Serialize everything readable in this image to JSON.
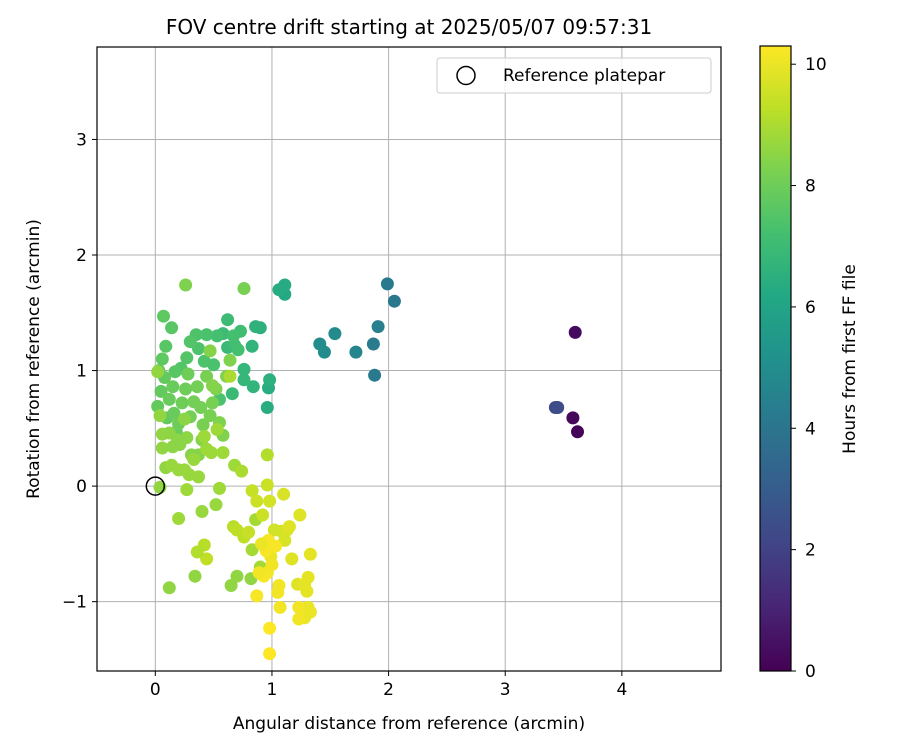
{
  "chart_data": {
    "type": "scatter",
    "title": "FOV centre drift starting at 2025/05/07 09:57:31",
    "xlabel": "Angular distance from reference (arcmin)",
    "ylabel": "Rotation from reference (arcmin)",
    "xlim": [
      -0.5,
      4.85
    ],
    "ylim": [
      -1.6,
      3.8
    ],
    "xticks": [
      0,
      1,
      2,
      3,
      4
    ],
    "xtick_labels": [
      "0",
      "1",
      "2",
      "3",
      "4"
    ],
    "yticks": [
      -1,
      0,
      1,
      2,
      3
    ],
    "ytick_labels": [
      "−1",
      "0",
      "1",
      "2",
      "3"
    ],
    "grid": true,
    "legend": {
      "placement": "upper-right",
      "entries": [
        "Reference platepar"
      ]
    },
    "reference_point": {
      "x": 0,
      "y": 0,
      "label": "Reference platepar"
    },
    "colorbar": {
      "label": "Hours from first FF file",
      "range": [
        0,
        10.3
      ],
      "ticks": [
        0,
        2,
        4,
        6,
        8,
        10
      ],
      "tick_labels": [
        "0",
        "2",
        "4",
        "6",
        "8",
        "10"
      ],
      "colormap": "viridis"
    },
    "points": [
      [
        3.62,
        0.47,
        0.1
      ],
      [
        3.58,
        0.59,
        0.2
      ],
      [
        3.6,
        1.33,
        0.3
      ],
      [
        3.43,
        0.68,
        2.2
      ],
      [
        3.45,
        0.68,
        2.4
      ],
      [
        1.88,
        0.96,
        4.2
      ],
      [
        1.87,
        1.23,
        4.3
      ],
      [
        1.91,
        1.38,
        4.4
      ],
      [
        2.05,
        1.6,
        4.1
      ],
      [
        1.99,
        1.75,
        4.2
      ],
      [
        1.72,
        1.16,
        4.6
      ],
      [
        1.54,
        1.32,
        4.9
      ],
      [
        1.45,
        1.16,
        5.0
      ],
      [
        1.41,
        1.23,
        5.0
      ],
      [
        1.11,
        1.66,
        6.2
      ],
      [
        1.11,
        1.74,
        6.3
      ],
      [
        1.06,
        1.7,
        6.3
      ],
      [
        0.96,
        0.68,
        6.4
      ],
      [
        0.97,
        0.85,
        6.4
      ],
      [
        0.98,
        0.92,
        6.5
      ],
      [
        0.9,
        1.37,
        6.5
      ],
      [
        0.86,
        1.38,
        6.6
      ],
      [
        0.83,
        1.21,
        6.7
      ],
      [
        0.84,
        0.86,
        6.7
      ],
      [
        0.76,
        1.01,
        6.8
      ],
      [
        0.76,
        0.92,
        6.8
      ],
      [
        0.66,
        0.8,
        6.9
      ],
      [
        0.62,
        1.2,
        6.9
      ],
      [
        0.58,
        1.32,
        7.0
      ],
      [
        0.62,
        1.44,
        7.0
      ],
      [
        0.68,
        1.22,
        7.1
      ],
      [
        0.73,
        1.34,
        7.1
      ],
      [
        0.67,
        1.3,
        7.2
      ],
      [
        0.71,
        1.18,
        7.2
      ],
      [
        0.53,
        1.3,
        7.2
      ],
      [
        0.5,
        1.05,
        7.3
      ],
      [
        0.55,
        0.75,
        7.3
      ],
      [
        0.44,
        1.31,
        7.3
      ],
      [
        0.42,
        1.08,
        7.4
      ],
      [
        0.37,
        1.19,
        7.4
      ],
      [
        0.35,
        1.31,
        7.4
      ],
      [
        0.3,
        1.25,
        7.5
      ],
      [
        0.27,
        1.11,
        7.5
      ],
      [
        0.22,
        1.02,
        7.5
      ],
      [
        0.17,
        0.99,
        7.6
      ],
      [
        0.14,
        1.37,
        7.6
      ],
      [
        0.09,
        1.21,
        7.6
      ],
      [
        0.07,
        1.47,
        7.7
      ],
      [
        0.06,
        1.1,
        7.7
      ],
      [
        0.03,
        1.0,
        7.7
      ],
      [
        0.02,
        0.69,
        7.8
      ],
      [
        0.05,
        0.82,
        7.8
      ],
      [
        0.08,
        0.94,
        7.8
      ],
      [
        0.1,
        0.59,
        7.8
      ],
      [
        0.12,
        0.75,
        7.9
      ],
      [
        0.15,
        0.86,
        7.9
      ],
      [
        0.16,
        0.63,
        7.9
      ],
      [
        0.18,
        0.47,
        7.9
      ],
      [
        0.2,
        0.54,
        8.0
      ],
      [
        0.23,
        0.72,
        8.0
      ],
      [
        0.26,
        0.84,
        8.0
      ],
      [
        0.28,
        0.97,
        8.0
      ],
      [
        0.3,
        0.6,
        8.1
      ],
      [
        0.33,
        0.73,
        8.1
      ],
      [
        0.36,
        0.86,
        8.1
      ],
      [
        0.39,
        0.68,
        8.1
      ],
      [
        0.41,
        0.53,
        8.2
      ],
      [
        0.44,
        0.95,
        8.2
      ],
      [
        0.47,
        0.61,
        8.2
      ],
      [
        0.49,
        0.72,
        8.2
      ],
      [
        0.52,
        0.84,
        8.3
      ],
      [
        0.55,
        0.55,
        8.3
      ],
      [
        0.58,
        0.44,
        8.3
      ],
      [
        0.61,
        0.95,
        8.3
      ],
      [
        0.64,
        1.09,
        8.3
      ],
      [
        0.76,
        1.71,
        8.2
      ],
      [
        0.26,
        1.74,
        8.3
      ],
      [
        0.47,
        1.17,
        8.4
      ],
      [
        0.49,
        0.87,
        8.4
      ],
      [
        0.4,
        0.4,
        8.4
      ],
      [
        0.37,
        0.27,
        8.4
      ],
      [
        0.31,
        0.27,
        8.4
      ],
      [
        0.27,
        0.42,
        8.5
      ],
      [
        0.25,
        0.58,
        8.5
      ],
      [
        0.21,
        0.36,
        8.5
      ],
      [
        0.19,
        0.4,
        8.5
      ],
      [
        0.15,
        0.34,
        8.5
      ],
      [
        0.12,
        0.46,
        8.5
      ],
      [
        0.06,
        0.45,
        8.6
      ],
      [
        0.04,
        0.61,
        8.6
      ],
      [
        0.02,
        0.99,
        8.6
      ],
      [
        0.06,
        0.33,
        8.6
      ],
      [
        0.09,
        0.16,
        8.6
      ],
      [
        0.14,
        0.18,
        8.7
      ],
      [
        0.2,
        0.14,
        8.7
      ],
      [
        0.25,
        0.14,
        8.7
      ],
      [
        0.29,
        0.1,
        8.7
      ],
      [
        0.33,
        0.23,
        8.7
      ],
      [
        0.37,
        0.08,
        8.7
      ],
      [
        0.42,
        0.43,
        8.8
      ],
      [
        0.44,
        0.32,
        8.8
      ],
      [
        0.48,
        0.29,
        8.8
      ],
      [
        0.53,
        0.49,
        8.8
      ],
      [
        0.58,
        0.29,
        8.8
      ],
      [
        0.68,
        0.18,
        8.8
      ],
      [
        0.27,
        -0.03,
        8.8
      ],
      [
        0.2,
        -0.28,
        8.8
      ],
      [
        0.04,
        -0.01,
        8.6
      ],
      [
        0.12,
        -0.88,
        8.6
      ],
      [
        0.34,
        -0.78,
        8.6
      ],
      [
        0.4,
        -0.22,
        8.7
      ],
      [
        0.52,
        -0.16,
        8.7
      ],
      [
        0.55,
        -0.02,
        8.8
      ],
      [
        0.65,
        -0.86,
        8.6
      ],
      [
        0.7,
        -0.78,
        8.6
      ],
      [
        0.82,
        -0.8,
        8.6
      ],
      [
        0.86,
        -0.29,
        8.9
      ],
      [
        0.83,
        -0.55,
        8.9
      ],
      [
        0.9,
        -0.7,
        8.9
      ],
      [
        0.74,
        0.13,
        9.0
      ],
      [
        0.64,
        0.95,
        9.0
      ],
      [
        0.96,
        0.27,
        9.1
      ],
      [
        0.42,
        -0.51,
        9.2
      ],
      [
        0.44,
        -0.63,
        9.3
      ],
      [
        0.36,
        -0.57,
        9.1
      ],
      [
        0.67,
        -0.35,
        9.2
      ],
      [
        0.7,
        -0.38,
        9.3
      ],
      [
        0.76,
        -0.44,
        9.3
      ],
      [
        0.8,
        -0.4,
        9.4
      ],
      [
        0.83,
        -0.04,
        9.4
      ],
      [
        0.87,
        -0.13,
        9.5
      ],
      [
        0.92,
        -0.25,
        9.5
      ],
      [
        0.96,
        0.01,
        9.5
      ],
      [
        0.98,
        -0.13,
        9.6
      ],
      [
        1.02,
        -0.38,
        9.6
      ],
      [
        1.08,
        -0.39,
        9.6
      ],
      [
        1.11,
        -0.47,
        9.7
      ],
      [
        1.13,
        -0.38,
        9.7
      ],
      [
        1.1,
        -0.07,
        9.7
      ],
      [
        1.15,
        -0.35,
        9.8
      ],
      [
        1.17,
        -0.63,
        9.8
      ],
      [
        1.24,
        -0.25,
        9.8
      ],
      [
        1.22,
        -0.85,
        9.8
      ],
      [
        1.28,
        -0.85,
        9.9
      ],
      [
        1.31,
        -0.79,
        9.9
      ],
      [
        1.33,
        -0.59,
        9.9
      ],
      [
        1.3,
        -0.91,
        9.9
      ],
      [
        1.31,
        -1.05,
        10.0
      ],
      [
        1.33,
        -1.09,
        10.0
      ],
      [
        1.28,
        -1.14,
        10.0
      ],
      [
        1.23,
        -1.15,
        10.1
      ],
      [
        1.23,
        -1.05,
        10.1
      ],
      [
        1.07,
        -1.05,
        10.1
      ],
      [
        1.05,
        -0.92,
        10.1
      ],
      [
        1.06,
        -0.86,
        10.1
      ],
      [
        0.99,
        -0.61,
        10.0
      ],
      [
        0.98,
        -0.55,
        10.0
      ],
      [
        0.96,
        -0.75,
        10.1
      ],
      [
        1.0,
        -0.68,
        10.1
      ],
      [
        0.97,
        -0.47,
        10.2
      ],
      [
        0.93,
        -0.78,
        10.2
      ],
      [
        0.87,
        -0.95,
        10.2
      ],
      [
        0.98,
        -1.23,
        10.3
      ],
      [
        0.98,
        -1.45,
        10.3
      ],
      [
        1.03,
        -0.52,
        10.2
      ],
      [
        0.95,
        -0.56,
        10.2
      ],
      [
        0.89,
        -0.75,
        10.1
      ],
      [
        0.91,
        -0.5,
        10.0
      ]
    ]
  }
}
